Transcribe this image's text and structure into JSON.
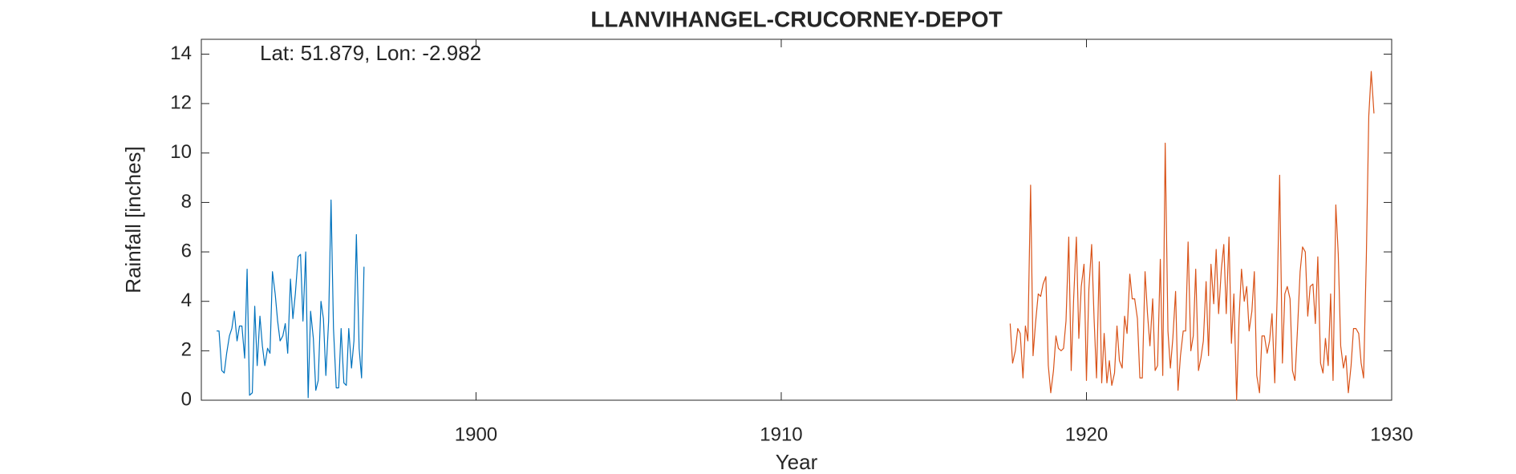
{
  "chart_data": {
    "type": "line",
    "title": "LLANVIHANGEL-CRUCORNEY-DEPOT",
    "annotation": "Lat: 51.879, Lon: -2.982",
    "xlabel": "Year",
    "ylabel": "Rainfall [inches]",
    "xlim": [
      1891,
      1930
    ],
    "xticks": [
      1900,
      1910,
      1920,
      1930
    ],
    "ylim": [
      0,
      14.6
    ],
    "yticks": [
      0,
      2,
      4,
      6,
      8,
      10,
      12,
      14
    ],
    "grid": false,
    "series": [
      {
        "color": "#0072BD",
        "x": [
          1891.5,
          1891.58,
          1891.67,
          1891.75,
          1891.83,
          1891.92,
          1892.0,
          1892.08,
          1892.17,
          1892.25,
          1892.33,
          1892.42,
          1892.5,
          1892.58,
          1892.67,
          1892.75,
          1892.83,
          1892.92,
          1893.0,
          1893.08,
          1893.17,
          1893.25,
          1893.33,
          1893.42,
          1893.5,
          1893.58,
          1893.67,
          1893.75,
          1893.83,
          1893.92,
          1894.0,
          1894.08,
          1894.17,
          1894.25,
          1894.33,
          1894.42,
          1894.5,
          1894.58,
          1894.67,
          1894.75,
          1894.83,
          1894.92,
          1895.0,
          1895.08,
          1895.17,
          1895.25,
          1895.33,
          1895.42,
          1895.5,
          1895.58,
          1895.67,
          1895.75,
          1895.83,
          1895.92,
          1896.0,
          1896.08,
          1896.17,
          1896.25,
          1896.33
        ],
        "values": [
          2.8,
          2.8,
          1.2,
          1.1,
          1.9,
          2.6,
          2.9,
          3.6,
          2.4,
          3.0,
          3.0,
          1.7,
          5.3,
          0.2,
          0.3,
          3.8,
          1.4,
          3.4,
          2.2,
          1.4,
          2.1,
          1.9,
          5.2,
          4.3,
          3.2,
          2.4,
          2.6,
          3.1,
          1.9,
          4.9,
          3.3,
          4.3,
          5.8,
          5.9,
          3.2,
          6.0,
          0.1,
          3.6,
          2.5,
          0.4,
          0.8,
          4.0,
          3.3,
          1.0,
          3.2,
          8.1,
          2.9,
          0.5,
          0.5,
          2.9,
          0.7,
          0.6,
          2.9,
          1.3,
          2.4,
          6.7,
          2.1,
          0.9,
          5.4
        ]
      },
      {
        "color": "#D95319",
        "x": [
          1917.5,
          1917.58,
          1917.67,
          1917.75,
          1917.83,
          1917.92,
          1918.0,
          1918.08,
          1918.17,
          1918.25,
          1918.33,
          1918.42,
          1918.5,
          1918.58,
          1918.67,
          1918.75,
          1918.83,
          1918.92,
          1919.0,
          1919.08,
          1919.17,
          1919.25,
          1919.33,
          1919.42,
          1919.5,
          1919.58,
          1919.67,
          1919.75,
          1919.83,
          1919.92,
          1920.0,
          1920.08,
          1920.17,
          1920.25,
          1920.33,
          1920.42,
          1920.5,
          1920.58,
          1920.67,
          1920.75,
          1920.83,
          1920.92,
          1921.0,
          1921.08,
          1921.17,
          1921.25,
          1921.33,
          1921.42,
          1921.5,
          1921.58,
          1921.67,
          1921.75,
          1921.83,
          1921.92,
          1922.0,
          1922.08,
          1922.17,
          1922.25,
          1922.33,
          1922.42,
          1922.5,
          1922.58,
          1922.67,
          1922.75,
          1922.83,
          1922.92,
          1923.0,
          1923.08,
          1923.17,
          1923.25,
          1923.33,
          1923.42,
          1923.5,
          1923.58,
          1923.67,
          1923.75,
          1923.83,
          1923.92,
          1924.0,
          1924.08,
          1924.17,
          1924.25,
          1924.33,
          1924.42,
          1924.5,
          1924.58,
          1924.67,
          1924.75,
          1924.83,
          1924.92,
          1925.0,
          1925.08,
          1925.17,
          1925.25,
          1925.33,
          1925.42,
          1925.5,
          1925.58,
          1925.67,
          1925.75,
          1925.83,
          1925.92,
          1926.0,
          1926.08,
          1926.17,
          1926.25,
          1926.33,
          1926.42,
          1926.5,
          1926.58,
          1926.67,
          1926.75,
          1926.83,
          1926.92,
          1927.0,
          1927.08,
          1927.17,
          1927.25,
          1927.33,
          1927.42,
          1927.5,
          1927.58,
          1927.67,
          1927.75,
          1927.83,
          1927.92,
          1928.0,
          1928.08,
          1928.17,
          1928.25,
          1928.33,
          1928.42,
          1928.5,
          1928.58,
          1928.67,
          1928.75,
          1928.83,
          1928.92,
          1929.0,
          1929.08,
          1929.17,
          1929.25,
          1929.33,
          1929.42
        ],
        "values": [
          3.1,
          1.5,
          2.0,
          2.9,
          2.7,
          0.9,
          3.0,
          2.4,
          8.7,
          1.8,
          3.1,
          4.3,
          4.2,
          4.7,
          5.0,
          1.4,
          0.3,
          1.2,
          2.6,
          2.1,
          2.0,
          2.1,
          3.2,
          6.6,
          1.2,
          4.1,
          6.6,
          2.5,
          4.6,
          5.5,
          0.8,
          4.5,
          6.3,
          3.3,
          0.9,
          5.6,
          0.7,
          2.7,
          0.7,
          1.6,
          0.6,
          1.1,
          3.0,
          1.6,
          1.3,
          3.4,
          2.7,
          5.1,
          4.1,
          4.1,
          3.3,
          0.9,
          0.9,
          5.2,
          3.5,
          2.2,
          4.1,
          1.2,
          1.4,
          5.7,
          1.0,
          10.4,
          2.8,
          1.3,
          2.5,
          4.4,
          0.4,
          1.8,
          2.8,
          2.8,
          6.4,
          2.0,
          2.6,
          5.3,
          1.2,
          1.7,
          2.4,
          4.8,
          1.8,
          5.5,
          3.9,
          6.1,
          3.5,
          5.3,
          6.3,
          3.5,
          6.6,
          2.3,
          4.3,
          0.0,
          3.3,
          5.3,
          4.0,
          4.6,
          2.8,
          3.6,
          5.2,
          1.0,
          0.3,
          2.6,
          2.6,
          1.9,
          2.4,
          3.5,
          0.7,
          4.3,
          9.1,
          1.5,
          4.3,
          4.6,
          4.1,
          1.2,
          0.8,
          3.0,
          5.2,
          6.2,
          6.0,
          3.4,
          4.6,
          4.7,
          3.1,
          5.8,
          1.5,
          1.1,
          2.5,
          1.4,
          4.3,
          0.8,
          7.9,
          5.9,
          2.2,
          1.3,
          1.8,
          0.3,
          1.4,
          2.9,
          2.9,
          2.7,
          1.5,
          0.9,
          5.8,
          11.5,
          13.3,
          11.6
        ]
      }
    ]
  }
}
